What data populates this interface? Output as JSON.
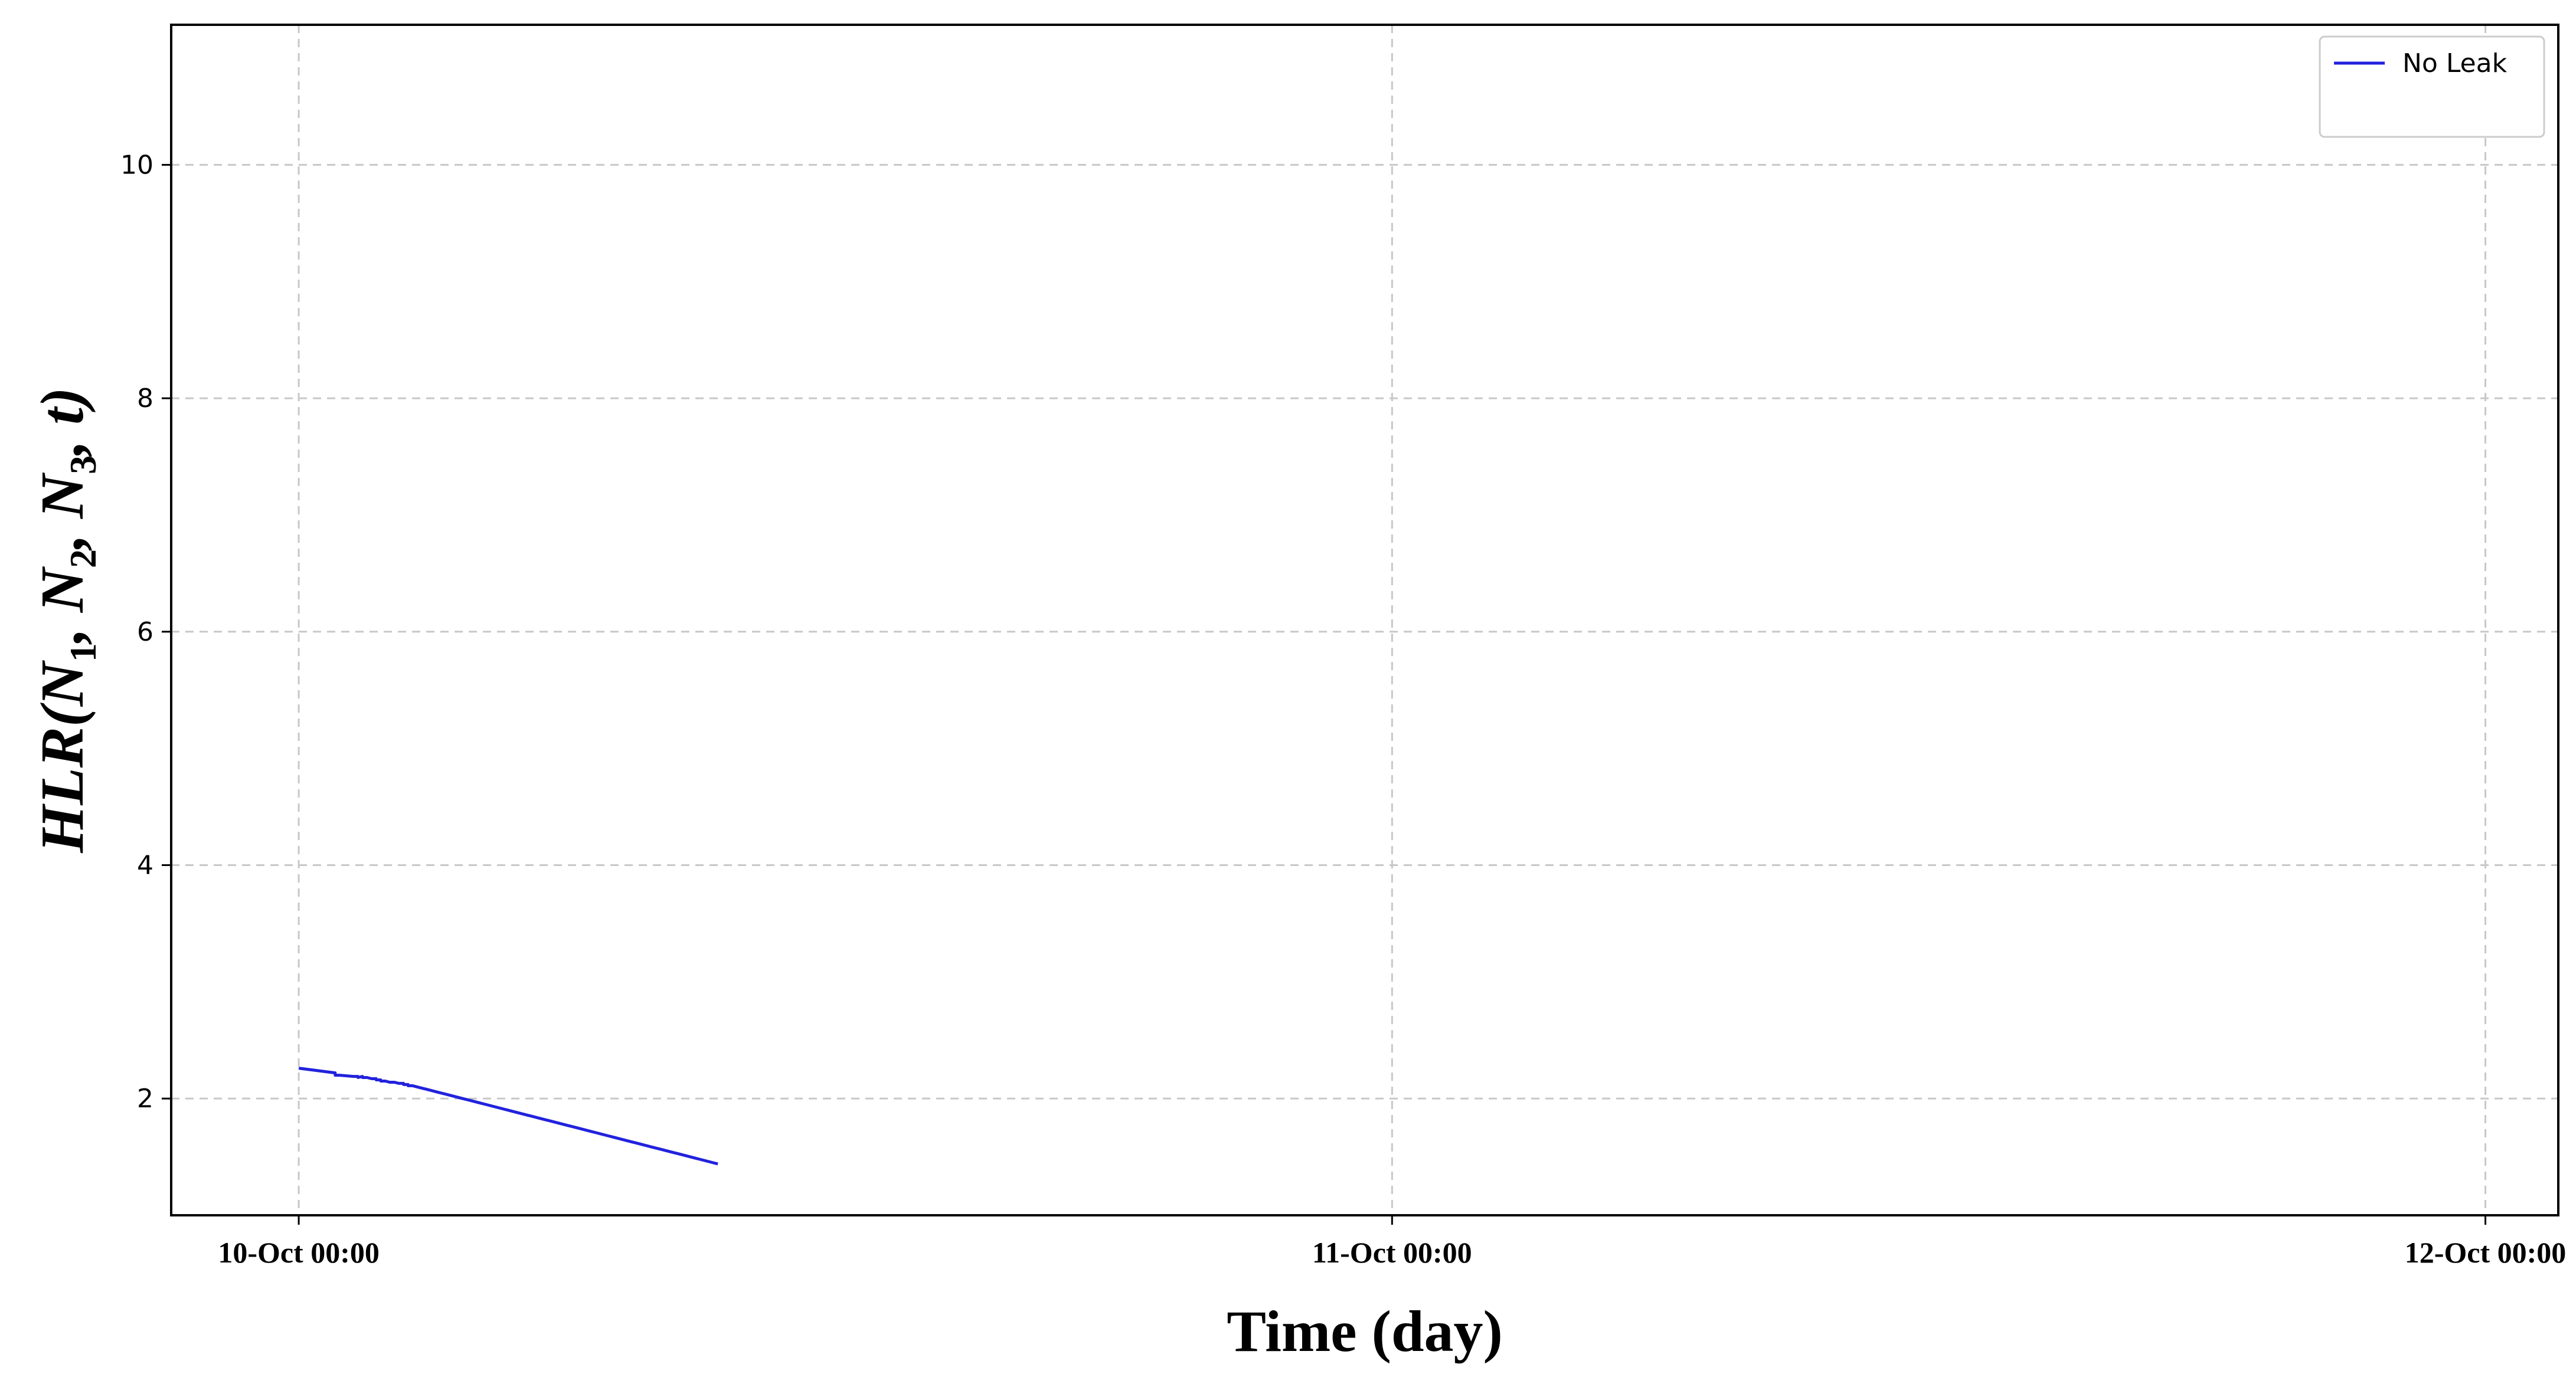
{
  "chart_data": {
    "type": "line",
    "title": "",
    "xlabel": "Time (day)",
    "ylabel": "HLR(N1, N2, N3, t)",
    "ylabel_parts": {
      "main": "HLR(N",
      "s1": "1",
      "sep1": ", N",
      "s2": "2",
      "sep2": ", N",
      "s3": "3",
      "end": ", t)"
    },
    "x_unit": "hours since 10-Oct 00:00",
    "xlim": [
      -2.8,
      49.6
    ],
    "ylim": [
      1.0,
      11.2
    ],
    "x_ticks": [
      0,
      24,
      48
    ],
    "x_tick_labels": [
      "10-Oct 00:00",
      "11-Oct 00:00",
      "12-Oct 00:00"
    ],
    "y_ticks": [
      2,
      4,
      6,
      8,
      10
    ],
    "y_tick_labels": [
      "2",
      "4",
      "6",
      "8",
      "10"
    ],
    "grid": true,
    "legend_position": "top-right",
    "series": [
      {
        "name": "No Leak",
        "color": "#2222dd",
        "points": [
          [
            0,
            2.26
          ],
          [
            0.8,
            2.22
          ],
          [
            0.8,
            2.2
          ],
          [
            0.9,
            2.2
          ],
          [
            0.9,
            2.2
          ],
          [
            1.2,
            2.19
          ],
          [
            1.2,
            2.19
          ],
          [
            1.3,
            2.19
          ],
          [
            1.3,
            2.18
          ],
          [
            1.4,
            2.19
          ],
          [
            1.4,
            2.18
          ],
          [
            1.5,
            2.18
          ],
          [
            1.5,
            2.18
          ],
          [
            1.6,
            2.17
          ],
          [
            1.6,
            2.17
          ],
          [
            1.7,
            2.17
          ],
          [
            1.7,
            2.16
          ],
          [
            1.8,
            2.16
          ],
          [
            1.8,
            2.15
          ],
          [
            1.9,
            2.15
          ],
          [
            1.9,
            2.15
          ],
          [
            2.0,
            2.14
          ],
          [
            2.0,
            2.14
          ],
          [
            2.1,
            2.14
          ],
          [
            2.1,
            2.14
          ],
          [
            2.2,
            2.13
          ],
          [
            2.2,
            2.13
          ],
          [
            2.3,
            2.13
          ],
          [
            2.3,
            2.12
          ],
          [
            2.4,
            2.12
          ],
          [
            2.4,
            2.11
          ],
          [
            2.5,
            2.11
          ],
          [
            2.5,
            2.11
          ],
          [
            2.6,
            2.1
          ],
          [
            2.6,
            2.1
          ],
          [
            2.7,
            2.09
          ],
          [
            2.7,
            2.09
          ],
          [
            2.8,
            2.08
          ],
          [
            2.8,
            2.08
          ],
          [
            2.9,
            2.07
          ],
          [
            2.9,
            2.07
          ],
          [
            3.0,
            2.06
          ],
          [
            3.0,
            2.06
          ],
          [
            3.1,
            2.05
          ],
          [
            3.1,
            2.05
          ],
          [
            3.2,
            2.04
          ],
          [
            3.2,
            2.04
          ],
          [
            3.3,
            2.03
          ],
          [
            3.3,
            2.03
          ],
          [
            3.4,
            2.02
          ],
          [
            3.4,
            2.02
          ],
          [
            3.5,
            2.01
          ],
          [
            3.5,
            2.01
          ],
          [
            3.6,
            2.0
          ],
          [
            3.6,
            2.0
          ],
          [
            3.7,
            1.99
          ],
          [
            3.7,
            1.99
          ],
          [
            3.8,
            1.98
          ],
          [
            3.8,
            1.98
          ],
          [
            3.9,
            1.97
          ],
          [
            3.9,
            1.97
          ],
          [
            4.0,
            1.96
          ],
          [
            4.0,
            1.96
          ],
          [
            4.1,
            1.95
          ],
          [
            4.1,
            1.95
          ],
          [
            4.2,
            1.94
          ],
          [
            4.2,
            1.94
          ],
          [
            4.3,
            1.93
          ],
          [
            4.3,
            1.93
          ],
          [
            4.4,
            1.92
          ],
          [
            4.4,
            1.92
          ],
          [
            4.5,
            1.91
          ],
          [
            4.5,
            1.91
          ],
          [
            4.6,
            1.9
          ],
          [
            4.6,
            1.9
          ],
          [
            4.7,
            1.89
          ],
          [
            4.7,
            1.89
          ],
          [
            4.8,
            1.88
          ],
          [
            4.8,
            1.88
          ],
          [
            4.9,
            1.87
          ],
          [
            4.9,
            1.87
          ],
          [
            5.0,
            1.86
          ],
          [
            5.0,
            1.86
          ],
          [
            5.1,
            1.85
          ],
          [
            5.1,
            1.85
          ],
          [
            5.2,
            1.84
          ],
          [
            5.2,
            1.84
          ],
          [
            5.3,
            1.83
          ],
          [
            5.3,
            1.83
          ],
          [
            5.4,
            1.82
          ],
          [
            5.4,
            1.82
          ],
          [
            5.5,
            1.81
          ],
          [
            5.5,
            1.81
          ],
          [
            5.6,
            1.8
          ],
          [
            5.6,
            1.8
          ],
          [
            5.7,
            1.79
          ],
          [
            5.7,
            1.79
          ],
          [
            5.8,
            1.78
          ],
          [
            5.8,
            1.78
          ],
          [
            5.9,
            1.77
          ],
          [
            5.9,
            1.77
          ],
          [
            6.0,
            1.76
          ],
          [
            6.0,
            1.76
          ],
          [
            6.1,
            1.75
          ],
          [
            6.1,
            1.75
          ],
          [
            6.2,
            1.74
          ],
          [
            6.2,
            1.74
          ],
          [
            6.3,
            1.73
          ],
          [
            6.3,
            1.73
          ],
          [
            6.4,
            1.72
          ],
          [
            6.4,
            1.72
          ],
          [
            6.5,
            1.71
          ],
          [
            6.5,
            1.71
          ],
          [
            6.6,
            1.7
          ],
          [
            6.6,
            1.7
          ],
          [
            6.7,
            1.69
          ],
          [
            6.7,
            1.69
          ],
          [
            6.8,
            1.68
          ],
          [
            6.8,
            1.68
          ],
          [
            6.9,
            1.67
          ],
          [
            6.9,
            1.67
          ],
          [
            7.0,
            1.66
          ],
          [
            7.0,
            1.66
          ],
          [
            7.1,
            1.65
          ],
          [
            7.1,
            1.65
          ],
          [
            7.2,
            1.64
          ],
          [
            7.2,
            1.64
          ],
          [
            7.3,
            1.63
          ],
          [
            7.3,
            1.63
          ],
          [
            7.4,
            1.62
          ],
          [
            7.4,
            1.62
          ],
          [
            7.5,
            1.61
          ],
          [
            7.5,
            1.61
          ],
          [
            7.6,
            1.6
          ],
          [
            7.6,
            1.6
          ],
          [
            7.7,
            1.59
          ],
          [
            7.7,
            1.59
          ],
          [
            7.8,
            1.58
          ],
          [
            7.8,
            1.58
          ],
          [
            7.9,
            1.57
          ],
          [
            7.9,
            1.57
          ],
          [
            8.0,
            1.56
          ],
          [
            8.0,
            1.56
          ],
          [
            8.1,
            1.55
          ],
          [
            8.1,
            1.55
          ],
          [
            8.2,
            1.54
          ],
          [
            8.2,
            1.54
          ],
          [
            8.3,
            1.53
          ],
          [
            8.3,
            1.53
          ],
          [
            8.4,
            1.52
          ],
          [
            8.4,
            1.52
          ],
          [
            8.5,
            1.51
          ],
          [
            8.5,
            1.51
          ],
          [
            8.6,
            1.5
          ],
          [
            8.6,
            1.5
          ],
          [
            8.7,
            1.49
          ],
          [
            8.7,
            1.49
          ],
          [
            8.8,
            1.48
          ],
          [
            8.8,
            1.48
          ],
          [
            8.9,
            1.47
          ],
          [
            8.9,
            1.47
          ],
          [
            9.0,
            1.46
          ],
          [
            9.0,
            1.46
          ],
          [
            9.1,
            1.45
          ],
          [
            9.1,
            1.45
          ],
          [
            9.2,
            1.44
          ],
          [
            9.2,
            1.44
          ]
        ]
      }
    ]
  }
}
